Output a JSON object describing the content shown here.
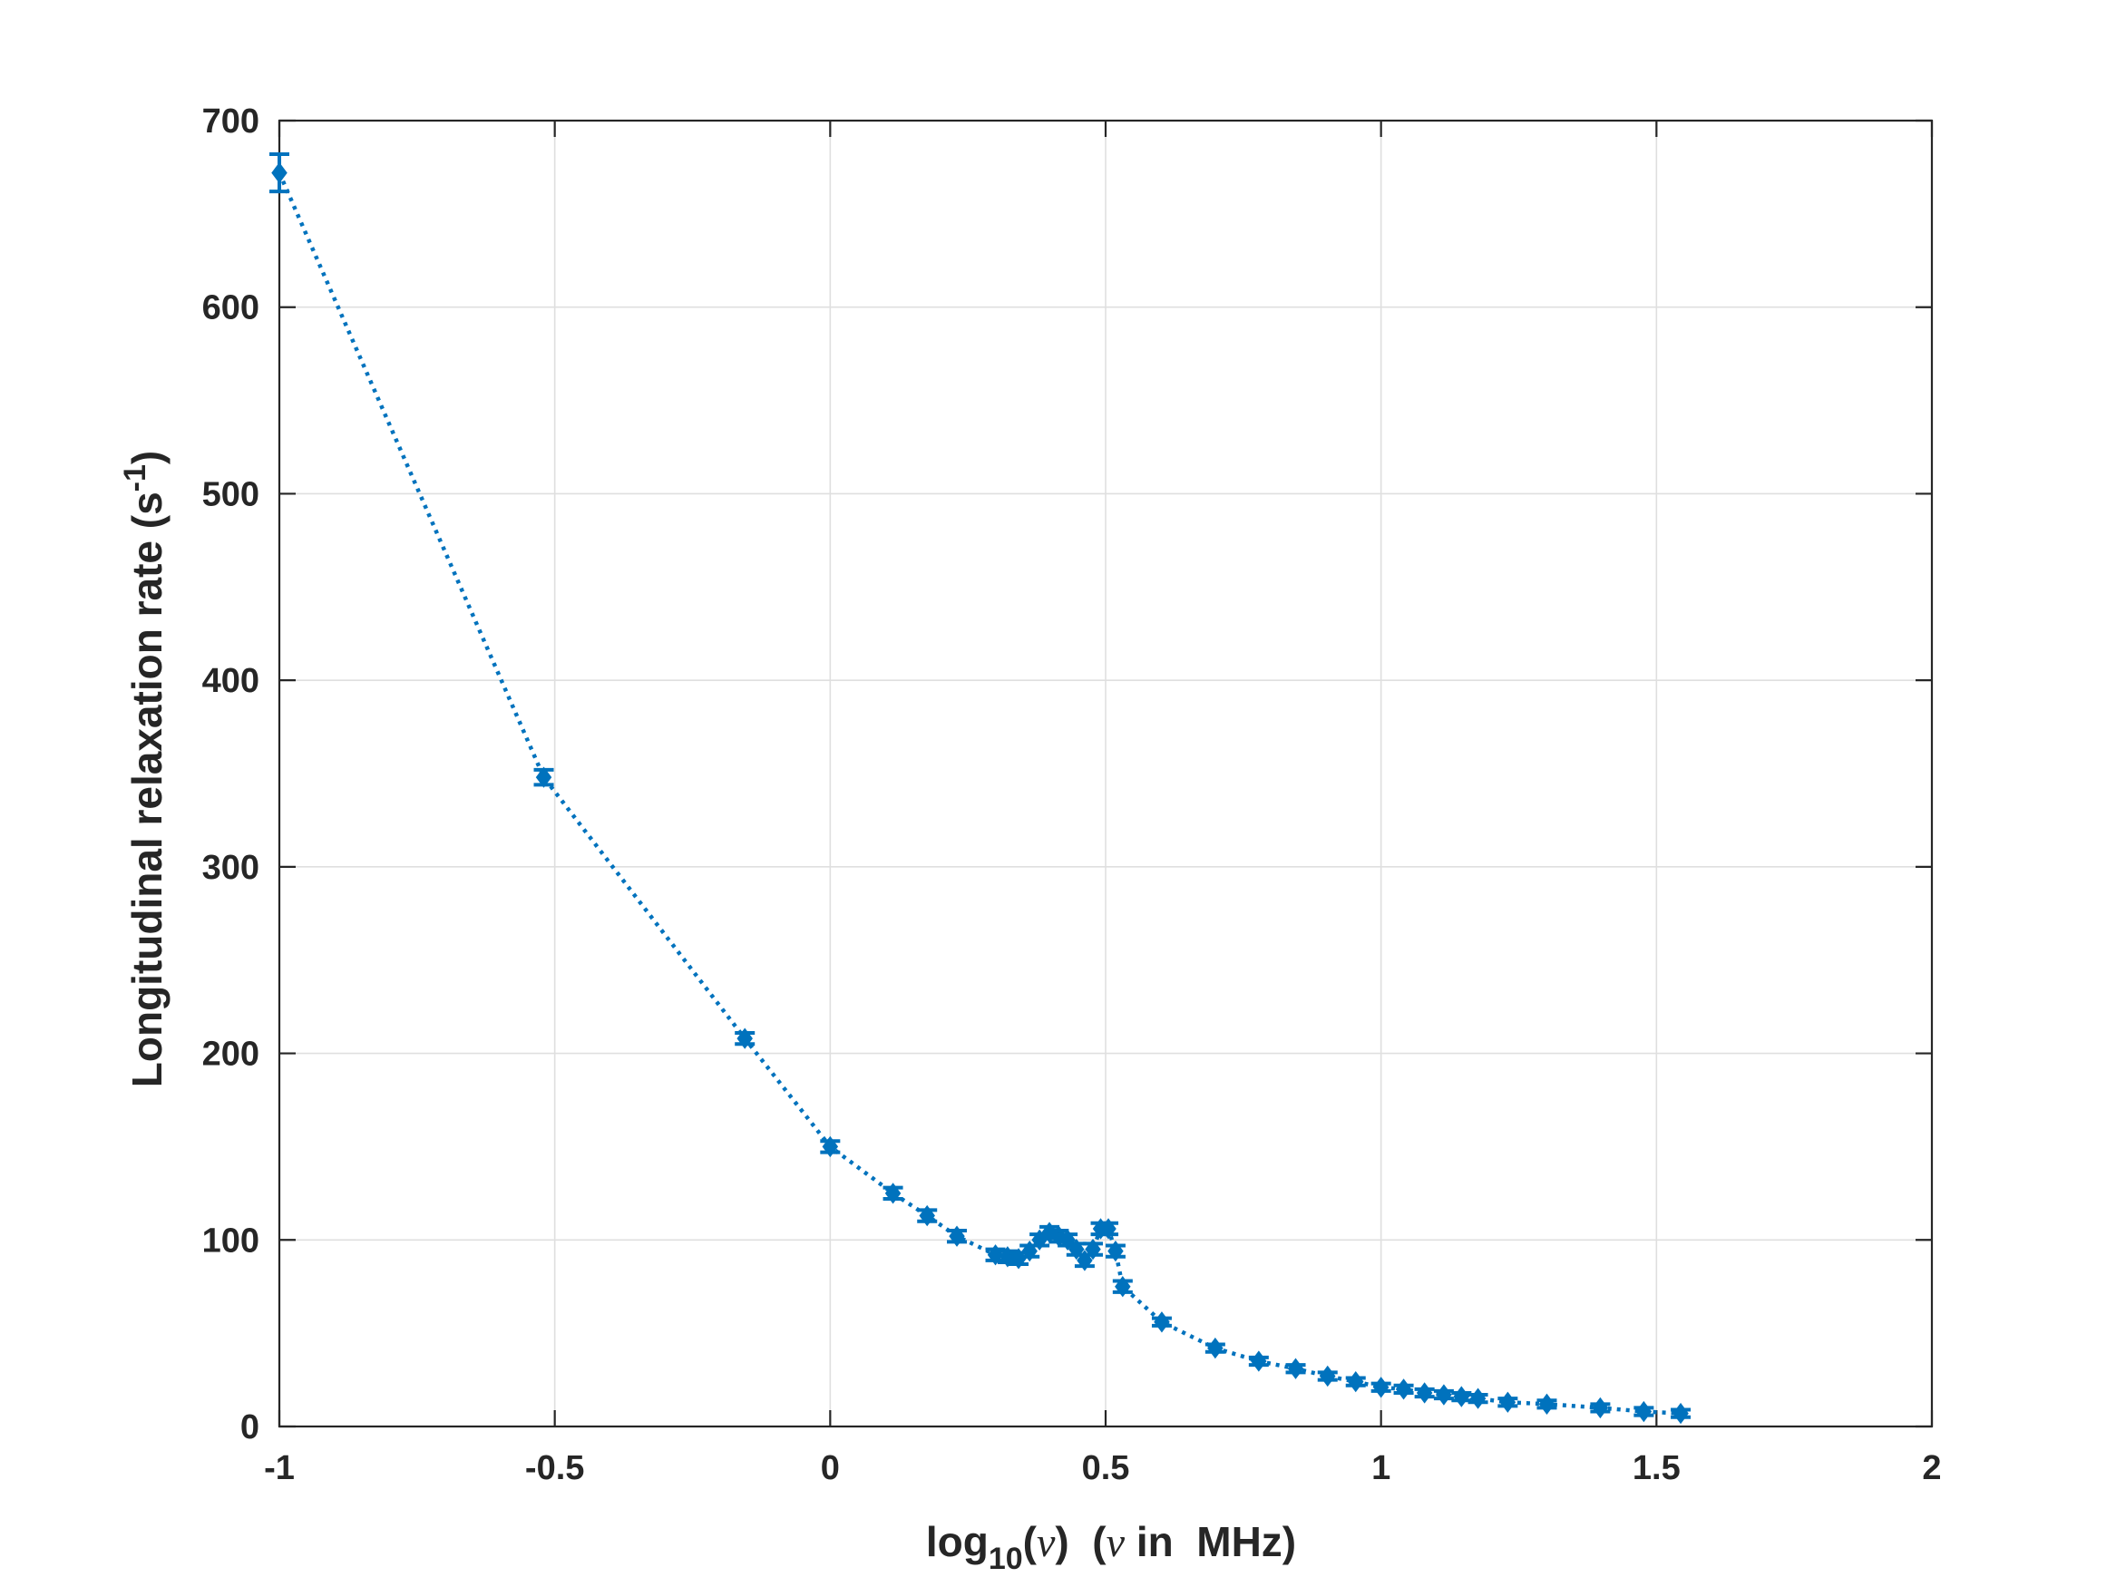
{
  "chart_data": {
    "type": "scatter",
    "xlabel": "log10(ν)  (ν in  MHz)",
    "xlabel_parts": {
      "base": "log",
      "sub": "10",
      "open": "(",
      "nu1": "ν",
      "mid": ")  (",
      "nu2": "ν",
      "tail": " in  MHz)"
    },
    "ylabel": "Longitudinal relaxation rate (s-1)",
    "ylabel_parts": {
      "main": "Longitudinal relaxation rate (s",
      "sup": "-1",
      "close": ")"
    },
    "xlim": [
      -1,
      2
    ],
    "ylim": [
      0,
      700
    ],
    "xticks": [
      "-1",
      "-0.5",
      "0",
      "0.5",
      "1",
      "1.5",
      "2"
    ],
    "xtick_values": [
      -1,
      -0.5,
      0,
      0.5,
      1,
      1.5,
      2
    ],
    "yticks": [
      "0",
      "100",
      "200",
      "300",
      "400",
      "500",
      "600",
      "700"
    ],
    "ytick_values": [
      0,
      100,
      200,
      300,
      400,
      500,
      600,
      700
    ],
    "grid": true,
    "color": "#0072BD",
    "line_style": "dotted",
    "marker": "diamond",
    "series": [
      {
        "points": [
          {
            "x": -1.0,
            "y": 672,
            "err": 10
          },
          {
            "x": -0.52,
            "y": 348,
            "err": 4
          },
          {
            "x": -0.155,
            "y": 208,
            "err": 3
          },
          {
            "x": 0.0,
            "y": 150,
            "err": 3
          },
          {
            "x": 0.114,
            "y": 125,
            "err": 3
          },
          {
            "x": 0.176,
            "y": 113,
            "err": 3
          },
          {
            "x": 0.23,
            "y": 102,
            "err": 3
          },
          {
            "x": 0.3,
            "y": 92,
            "err": 3
          },
          {
            "x": 0.322,
            "y": 91,
            "err": 3
          },
          {
            "x": 0.342,
            "y": 90,
            "err": 3
          },
          {
            "x": 0.362,
            "y": 94,
            "err": 3
          },
          {
            "x": 0.38,
            "y": 100,
            "err": 3
          },
          {
            "x": 0.398,
            "y": 104,
            "err": 3
          },
          {
            "x": 0.415,
            "y": 102,
            "err": 3
          },
          {
            "x": 0.431,
            "y": 100,
            "err": 3
          },
          {
            "x": 0.447,
            "y": 95,
            "err": 3
          },
          {
            "x": 0.462,
            "y": 89,
            "err": 3
          },
          {
            "x": 0.477,
            "y": 95,
            "err": 3
          },
          {
            "x": 0.491,
            "y": 106,
            "err": 3
          },
          {
            "x": 0.505,
            "y": 106,
            "err": 3
          },
          {
            "x": 0.518,
            "y": 94,
            "err": 3
          },
          {
            "x": 0.531,
            "y": 75,
            "err": 3
          },
          {
            "x": 0.602,
            "y": 56,
            "err": 2
          },
          {
            "x": 0.699,
            "y": 42,
            "err": 2
          },
          {
            "x": 0.778,
            "y": 35,
            "err": 2
          },
          {
            "x": 0.845,
            "y": 31,
            "err": 2
          },
          {
            "x": 0.903,
            "y": 27,
            "err": 2
          },
          {
            "x": 0.954,
            "y": 24,
            "err": 2
          },
          {
            "x": 1.0,
            "y": 21,
            "err": 2
          },
          {
            "x": 1.041,
            "y": 20,
            "err": 2
          },
          {
            "x": 1.079,
            "y": 18,
            "err": 2
          },
          {
            "x": 1.114,
            "y": 17,
            "err": 2
          },
          {
            "x": 1.146,
            "y": 16,
            "err": 2
          },
          {
            "x": 1.176,
            "y": 15,
            "err": 2
          },
          {
            "x": 1.23,
            "y": 13,
            "err": 2
          },
          {
            "x": 1.301,
            "y": 12,
            "err": 2
          },
          {
            "x": 1.398,
            "y": 10,
            "err": 2
          },
          {
            "x": 1.477,
            "y": 8,
            "err": 2
          },
          {
            "x": 1.544,
            "y": 7,
            "err": 2
          }
        ]
      }
    ]
  }
}
